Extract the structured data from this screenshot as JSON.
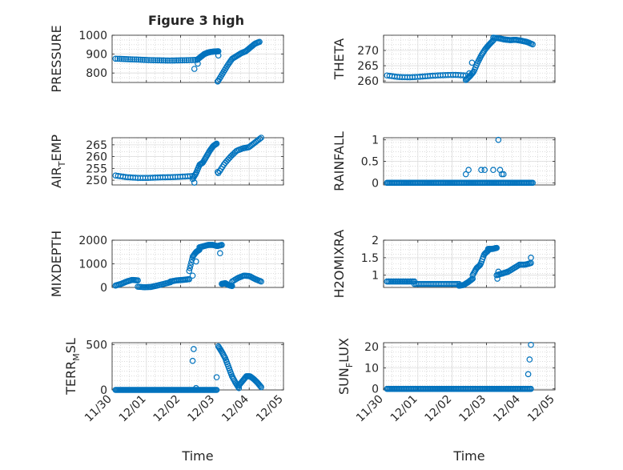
{
  "figure": {
    "title": "Figure 3 high"
  },
  "style": {
    "marker_color": "#0072BD",
    "axis_color": "#262626",
    "grid_color": "#dcdcdc",
    "minor_grid_color": "#c8c8c8"
  },
  "chart_data": [
    {
      "id": "pressure",
      "type": "scatter",
      "marker": "circle",
      "ylabel": {
        "main": "PRESSURE"
      },
      "ylim": [
        750,
        1000
      ],
      "yticks": [
        800,
        900,
        1000
      ],
      "yticklabels": [
        "800",
        "900",
        "1000"
      ],
      "xlim": [
        0,
        5
      ],
      "xticks": [
        0,
        1,
        2,
        3,
        4,
        5
      ],
      "xticklabels": [
        "11/30",
        "12/01",
        "12/02",
        "12/03",
        "12/04",
        "12/05"
      ],
      "show_xticklabels": false,
      "grid": true,
      "minor_grid": true,
      "series": [
        {
          "segments": [
            {
              "x0": 0.1,
              "x1": 2.48,
              "y": [
                876,
                874,
                872,
                870,
                868,
                867,
                866,
                867,
                868,
                870
              ]
            },
            {
              "x0": 2.48,
              "x1": 3.1,
              "y": [
                870,
                885,
                900,
                908,
                912,
                914,
                915
              ]
            }
          ],
          "points": [
            [
              2.4,
              822
            ],
            [
              2.5,
              850
            ],
            [
              3.1,
              893
            ]
          ]
        },
        {
          "segments": [
            {
              "x0": 3.1,
              "x1": 4.3,
              "y": [
                760,
                800,
                840,
                875,
                890,
                905,
                915,
                935,
                955,
                965
              ]
            }
          ],
          "points": [
            [
              3.08,
              755
            ]
          ]
        }
      ]
    },
    {
      "id": "theta",
      "type": "scatter",
      "marker": "circle",
      "ylabel": {
        "main": "THETA"
      },
      "ylim": [
        259.5,
        275
      ],
      "yticks": [
        260,
        265,
        270
      ],
      "yticklabels": [
        "260",
        "265",
        "270"
      ],
      "xlim": [
        0,
        5
      ],
      "xticks": [
        0,
        1,
        2,
        3,
        4,
        5
      ],
      "xticklabels": [
        "11/30",
        "12/01",
        "12/02",
        "12/03",
        "12/04",
        "12/05"
      ],
      "show_xticklabels": false,
      "grid": true,
      "minor_grid": true,
      "series": [
        {
          "segments": [
            {
              "x0": 0.1,
              "x1": 2.4,
              "y": [
                261.8,
                261.3,
                261.2,
                261.4,
                261.7,
                261.9,
                262.0,
                261.8
              ]
            },
            {
              "x0": 2.4,
              "x1": 3.2,
              "y": [
                260.3,
                261.5,
                263,
                266,
                268.5,
                270.5,
                272,
                273.3
              ]
            },
            {
              "x0": 3.2,
              "x1": 4.35,
              "y": [
                274.2,
                274.0,
                273.6,
                273.4,
                273.5,
                273.2,
                272.8,
                272.0
              ]
            }
          ],
          "points": [
            [
              2.58,
              266
            ],
            [
              2.5,
              262.5
            ]
          ]
        }
      ]
    },
    {
      "id": "air_temp",
      "type": "scatter",
      "marker": "circle",
      "ylabel": {
        "main": "AIR",
        "sub": "T",
        "rest": "EMP"
      },
      "ylim": [
        248,
        268
      ],
      "yticks": [
        250,
        255,
        260,
        265
      ],
      "yticklabels": [
        "250",
        "255",
        "260",
        "265"
      ],
      "xlim": [
        0,
        5
      ],
      "xticks": [
        0,
        1,
        2,
        3,
        4,
        5
      ],
      "xticklabels": [
        "11/30",
        "12/01",
        "12/02",
        "12/03",
        "12/04",
        "12/05"
      ],
      "show_xticklabels": false,
      "grid": true,
      "minor_grid": true,
      "series": [
        {
          "segments": [
            {
              "x0": 0.1,
              "x1": 2.35,
              "y": [
                252,
                251.3,
                251,
                251,
                251.2,
                251.3,
                251.5,
                251.8
              ]
            },
            {
              "x0": 2.35,
              "x1": 3.05,
              "y": [
                250.5,
                253,
                256.5,
                257.5,
                260,
                262.5,
                264.5,
                265.5
              ]
            },
            {
              "x0": 3.1,
              "x1": 4.35,
              "y": [
                253,
                257,
                260,
                262.5,
                263.5,
                264,
                266,
                268
              ]
            }
          ],
          "points": [
            [
              2.4,
              249
            ],
            [
              3.08,
              253.5
            ]
          ]
        }
      ]
    },
    {
      "id": "rainfall",
      "type": "scatter",
      "marker": "circle",
      "ylabel": {
        "main": "RAINFALL"
      },
      "ylim": [
        -0.05,
        1.05
      ],
      "yticks": [
        0,
        0.5,
        1
      ],
      "yticklabels": [
        "0",
        "0.5",
        "1"
      ],
      "xlim": [
        0,
        5
      ],
      "xticks": [
        0,
        1,
        2,
        3,
        4,
        5
      ],
      "xticklabels": [
        "11/30",
        "12/01",
        "12/02",
        "12/03",
        "12/04",
        "12/05"
      ],
      "show_xticklabels": false,
      "grid": true,
      "minor_grid": true,
      "series": [
        {
          "segments": [
            {
              "x0": 0.1,
              "x1": 4.35,
              "y": [
                0,
                0,
                0,
                0,
                0,
                0,
                0,
                0,
                0,
                0,
                0,
                0,
                0,
                0,
                0,
                0,
                0,
                0,
                0,
                0,
                0,
                0,
                0,
                0,
                0,
                0,
                0,
                0,
                0,
                0
              ]
            }
          ],
          "points": [
            [
              2.4,
              0.2
            ],
            [
              2.48,
              0.3
            ],
            [
              2.85,
              0.3
            ],
            [
              2.95,
              0.3
            ],
            [
              3.2,
              0.3
            ],
            [
              3.35,
              1.0
            ],
            [
              3.4,
              0.3
            ],
            [
              3.45,
              0.2
            ],
            [
              3.5,
              0.2
            ]
          ]
        }
      ]
    },
    {
      "id": "mixdepth",
      "type": "scatter",
      "marker": "circle",
      "ylabel": {
        "main": "MIXDEPTH"
      },
      "ylim": [
        0,
        2000
      ],
      "yticks": [
        0,
        1000,
        2000
      ],
      "yticklabels": [
        "0",
        "1000",
        "2000"
      ],
      "xlim": [
        0,
        5
      ],
      "xticks": [
        0,
        1,
        2,
        3,
        4,
        5
      ],
      "xticklabels": [
        "11/30",
        "12/01",
        "12/02",
        "12/03",
        "12/04",
        "12/05"
      ],
      "show_xticklabels": false,
      "grid": true,
      "minor_grid": true,
      "series": [
        {
          "segments": [
            {
              "x0": 0.1,
              "x1": 0.75,
              "y": [
                80,
                150,
                250,
                320,
                300
              ]
            },
            {
              "x0": 0.75,
              "x1": 1.7,
              "y": [
                30,
                10,
                20,
                80,
                150,
                220
              ]
            },
            {
              "x0": 1.7,
              "x1": 2.25,
              "y": [
                250,
                300,
                320,
                350
              ]
            },
            {
              "x0": 2.25,
              "x1": 2.55,
              "y": [
                700,
                1300,
                1500,
                1600
              ]
            },
            {
              "x0": 2.55,
              "x1": 3.2,
              "y": [
                1700,
                1750,
                1800,
                1800,
                1750,
                1800
              ]
            },
            {
              "x0": 3.2,
              "x1": 3.5,
              "y": [
                150,
                180,
                100,
                60
              ]
            },
            {
              "x0": 3.5,
              "x1": 4.35,
              "y": [
                250,
                400,
                500,
                480,
                350,
                250
              ]
            }
          ],
          "points": [
            [
              2.35,
              500
            ],
            [
              2.45,
              1100
            ],
            [
              3.15,
              1450
            ]
          ]
        }
      ]
    },
    {
      "id": "h2omixra",
      "type": "scatter",
      "marker": "circle",
      "ylabel": {
        "main": "H2OMIXRA"
      },
      "ylim": [
        0.65,
        2.0
      ],
      "yticks": [
        1,
        1.5,
        2
      ],
      "yticklabels": [
        "1",
        "1.5",
        "2"
      ],
      "xlim": [
        0,
        5
      ],
      "xticks": [
        0,
        1,
        2,
        3,
        4,
        5
      ],
      "xticklabels": [
        "11/30",
        "12/01",
        "12/02",
        "12/03",
        "12/04",
        "12/05"
      ],
      "show_xticklabels": false,
      "grid": true,
      "minor_grid": true,
      "series": [
        {
          "segments": [
            {
              "x0": 0.1,
              "x1": 0.9,
              "y": [
                0.82,
                0.82,
                0.82,
                0.82,
                0.82
              ]
            },
            {
              "x0": 0.9,
              "x1": 2.2,
              "y": [
                0.75,
                0.75,
                0.75,
                0.75,
                0.75,
                0.75,
                0.75
              ]
            },
            {
              "x0": 2.2,
              "x1": 2.6,
              "y": [
                0.7,
                0.72,
                0.8,
                0.9
              ]
            },
            {
              "x0": 2.6,
              "x1": 3.05,
              "y": [
                1.0,
                1.2,
                1.3,
                1.6,
                1.7
              ]
            },
            {
              "x0": 3.05,
              "x1": 3.3,
              "y": [
                1.75,
                1.75,
                1.78
              ]
            },
            {
              "x0": 3.3,
              "x1": 4.3,
              "y": [
                1.0,
                1.05,
                1.1,
                1.2,
                1.3,
                1.3,
                1.35
              ]
            }
          ],
          "points": [
            [
              3.32,
              0.9
            ],
            [
              3.35,
              1.1
            ],
            [
              4.3,
              1.5
            ]
          ]
        }
      ]
    },
    {
      "id": "terr_msl",
      "type": "scatter",
      "marker": "circle",
      "ylabel": {
        "main": "TERR",
        "sub": "M",
        "rest": "SL"
      },
      "ylim": [
        0,
        520
      ],
      "yticks": [
        0,
        500
      ],
      "yticklabels": [
        "0",
        "500"
      ],
      "xlim": [
        0,
        5
      ],
      "xticks": [
        0,
        1,
        2,
        3,
        4,
        5
      ],
      "xticklabels": [
        "11/30",
        "12/01",
        "12/02",
        "12/03",
        "12/04",
        "12/05"
      ],
      "show_xticklabels": true,
      "xlabel": "Time",
      "grid": true,
      "minor_grid": true,
      "series": [
        {
          "segments": [
            {
              "x0": 0.1,
              "x1": 3.05,
              "y": [
                0,
                0,
                0,
                0,
                0,
                0,
                0,
                0,
                0,
                0,
                0,
                0,
                0,
                0,
                0,
                0,
                0,
                0,
                0,
                0,
                0,
                0,
                0,
                0
              ]
            },
            {
              "x0": 3.1,
              "x1": 3.7,
              "y": [
                480,
                420,
                350,
                250,
                150,
                80,
                20
              ]
            },
            {
              "x0": 3.7,
              "x1": 4.35,
              "y": [
                50,
                100,
                150,
                150,
                120,
                80,
                30
              ]
            }
          ],
          "points": [
            [
              2.38,
              450
            ],
            [
              2.35,
              320
            ],
            [
              3.05,
              140
            ],
            [
              2.45,
              20
            ]
          ]
        }
      ]
    },
    {
      "id": "sun_flux",
      "type": "scatter",
      "marker": "circle",
      "ylabel": {
        "main": "SUN",
        "sub": "F",
        "rest": "LUX"
      },
      "ylim": [
        -0.5,
        22
      ],
      "yticks": [
        0,
        10,
        20
      ],
      "yticklabels": [
        "0",
        "10",
        "20"
      ],
      "xlim": [
        0,
        5
      ],
      "xticks": [
        0,
        1,
        2,
        3,
        4,
        5
      ],
      "xticklabels": [
        "11/30",
        "12/01",
        "12/02",
        "12/03",
        "12/04",
        "12/05"
      ],
      "show_xticklabels": true,
      "xlabel": "Time",
      "grid": true,
      "minor_grid": true,
      "series": [
        {
          "segments": [
            {
              "x0": 0.1,
              "x1": 4.3,
              "y": [
                0,
                0,
                0,
                0,
                0,
                0,
                0,
                0,
                0,
                0,
                0,
                0,
                0,
                0,
                0,
                0,
                0,
                0,
                0,
                0,
                0,
                0,
                0,
                0,
                0,
                0,
                0,
                0,
                0,
                0
              ]
            }
          ],
          "points": [
            [
              4.22,
              7
            ],
            [
              4.26,
              14
            ],
            [
              4.3,
              21
            ]
          ]
        }
      ]
    }
  ]
}
